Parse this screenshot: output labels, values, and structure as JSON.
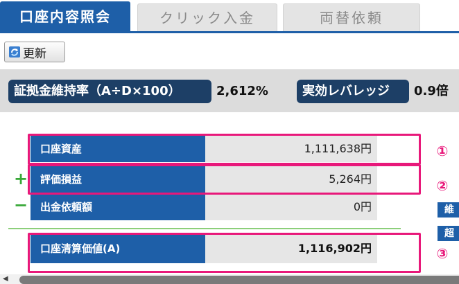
{
  "tabs": [
    {
      "label": "口座内容照会",
      "active": true
    },
    {
      "label": "クリック入金",
      "active": false
    },
    {
      "label": "両替依頼",
      "active": false
    }
  ],
  "toolbar": {
    "refresh_label": "更新",
    "refresh_icon": "refresh-icon"
  },
  "summary": {
    "margin_ratio_label": "証拠金維持率（A÷D×100）",
    "margin_ratio_value": "2,612%",
    "leverage_label": "実効レバレッジ",
    "leverage_value": "0.9倍"
  },
  "rows": [
    {
      "label": "口座資産",
      "value": "1,111,638円",
      "sign": "",
      "marker": "①"
    },
    {
      "label": "評価損益",
      "value": "5,264円",
      "sign": "+",
      "marker": "②"
    },
    {
      "label": "出金依頼額",
      "value": "0円",
      "sign": "−",
      "marker": ""
    },
    {
      "label": "口座清算価値(A)",
      "value": "1,116,902円",
      "sign": "",
      "marker": "③"
    }
  ],
  "side_tabs": [
    "維",
    "超"
  ],
  "colors": {
    "primary": "#1e5fa8",
    "dark_navy": "#1d3f66",
    "highlight": "#e8187a",
    "sign_green": "#38a838"
  }
}
